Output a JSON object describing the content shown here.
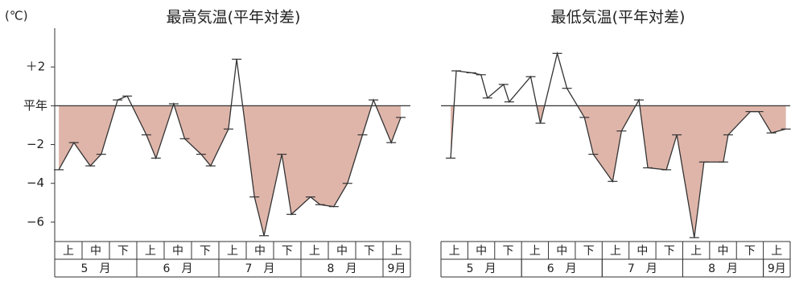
{
  "chart_data": [
    {
      "type": "line",
      "title": "最高気温(平年対差)",
      "y_label": "(℃)",
      "x": [
        0.15,
        0.7,
        1.3,
        1.7,
        2.3,
        2.65,
        3.35,
        3.7,
        4.35,
        4.75,
        5.35,
        5.7,
        6.35,
        6.65,
        7.3,
        7.65,
        8.3,
        8.65,
        9.35,
        9.7,
        10.2,
        10.7,
        11.25,
        11.65,
        12.3,
        12.65
      ],
      "values": [
        -3.3,
        -1.9,
        -3.1,
        -2.5,
        0.3,
        0.5,
        -1.5,
        -2.7,
        0.1,
        -1.7,
        -2.5,
        -3.1,
        -1.2,
        2.4,
        -4.7,
        -6.7,
        -2.5,
        -5.6,
        -4.7,
        -5.1,
        -5.2,
        -4.0,
        -1.5,
        0.3,
        -1.9,
        -0.6
      ],
      "xlim": [
        0,
        13
      ],
      "ylim": [
        -7,
        4
      ],
      "yticks": [
        {
          "value": 2,
          "label": "＋2"
        },
        {
          "value": 0,
          "label": "平年"
        },
        {
          "value": -2,
          "label": "−2"
        },
        {
          "value": -4,
          "label": "−4"
        },
        {
          "value": -6,
          "label": "−6"
        }
      ],
      "categories": [
        "上",
        "中",
        "下",
        "上",
        "中",
        "下",
        "上",
        "中",
        "下",
        "上",
        "中",
        "下",
        "上"
      ],
      "months": [
        "5　月",
        "6　月",
        "7　月",
        "8　月",
        "9月"
      ],
      "color": "#333333",
      "fill_color": "#dfb5aa"
    },
    {
      "type": "line",
      "title": "最低気温(平年対差)",
      "x": [
        0.36,
        0.57,
        1.13,
        1.49,
        1.73,
        2.33,
        2.54,
        3.34,
        3.7,
        4.33,
        4.69,
        5.34,
        5.67,
        6.39,
        6.72,
        7.37,
        7.7,
        8.39,
        8.78,
        9.43,
        9.79,
        10.51,
        10.69,
        11.52,
        11.82,
        12.3,
        12.84
      ],
      "values": [
        -2.7,
        1.8,
        1.7,
        1.6,
        0.4,
        1.1,
        0.2,
        1.5,
        -0.9,
        2.7,
        0.9,
        -0.6,
        -2.5,
        -3.9,
        -1.3,
        0.3,
        -3.2,
        -3.3,
        -1.5,
        -6.8,
        -2.9,
        -2.9,
        -1.5,
        -0.3,
        -0.3,
        -1.4,
        -1.2
      ],
      "xlim": [
        0,
        13
      ],
      "ylim": [
        -7,
        4
      ],
      "categories": [
        "上",
        "中",
        "下",
        "上",
        "中",
        "下",
        "上",
        "中",
        "下",
        "上",
        "中",
        "下",
        "上"
      ],
      "months": [
        "5　月",
        "6　月",
        "7　月",
        "8　月",
        "9月"
      ],
      "color": "#333333",
      "fill_color": "#dfb5aa"
    }
  ]
}
